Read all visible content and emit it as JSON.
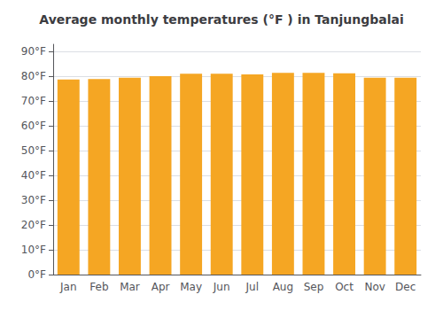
{
  "chart_data": {
    "type": "bar",
    "title": "Average monthly temperatures (°F ) in Tanjungbalai",
    "categories": [
      "Jan",
      "Feb",
      "Mar",
      "Apr",
      "May",
      "Jun",
      "Jul",
      "Aug",
      "Sep",
      "Oct",
      "Nov",
      "Dec"
    ],
    "values": [
      78.8,
      79.0,
      79.5,
      80.1,
      81.1,
      81.1,
      80.8,
      81.5,
      81.5,
      81.3,
      79.5,
      79.5
    ],
    "color": "#F5A623",
    "ylim": [
      0,
      93
    ],
    "yticks": [
      {
        "value": 0,
        "label": "0°F"
      },
      {
        "value": 10,
        "label": "10°F"
      },
      {
        "value": 20,
        "label": "20°F"
      },
      {
        "value": 30,
        "label": "30°F"
      },
      {
        "value": 40,
        "label": "40°F"
      },
      {
        "value": 50,
        "label": "50°F"
      },
      {
        "value": 60,
        "label": "60°F"
      },
      {
        "value": 70,
        "label": "70°F"
      },
      {
        "value": 80,
        "label": "80°F"
      },
      {
        "value": 90,
        "label": "90°F"
      }
    ],
    "grid": true
  }
}
